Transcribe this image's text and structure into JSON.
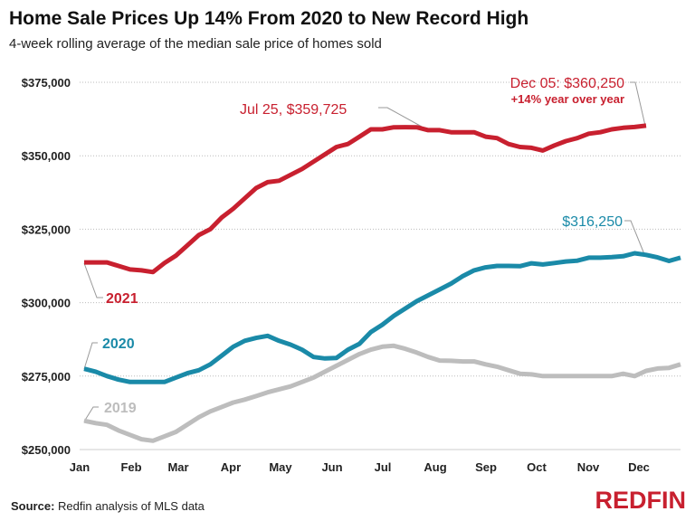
{
  "title": "Home Sale Prices Up 14% From 2020 to New Record High",
  "subtitle": "4-week rolling average of the median sale price of homes sold",
  "source_label": "Source:",
  "source_text": "Redfin analysis of MLS data",
  "logo": "REDFIN",
  "chart_data": {
    "type": "line",
    "title": "Home Sale Prices Up 14% From 2020 to New Record High",
    "xlabel": "",
    "ylabel": "",
    "x_unit": "week of year",
    "ylim": [
      250000,
      375000
    ],
    "yticks": [
      375000,
      350000,
      325000,
      300000,
      275000,
      250000
    ],
    "ytick_labels": [
      "$375,000",
      "$350,000",
      "$325,000",
      "$300,000",
      "$275,000",
      "$250,000"
    ],
    "xtick_labels": [
      "Jan",
      "Feb",
      "Mar",
      "Apr",
      "May",
      "Jun",
      "Jul",
      "Aug",
      "Sep",
      "Oct",
      "Nov",
      "Dec"
    ],
    "grid": "horizontal dotted",
    "series": [
      {
        "name": "2019",
        "color": "#bdbdbd",
        "values": [
          259800,
          259000,
          258400,
          256500,
          255000,
          253500,
          253000,
          254500,
          256000,
          258500,
          261000,
          263000,
          264500,
          266000,
          267000,
          268200,
          269500,
          270500,
          271500,
          273000,
          274500,
          276500,
          278500,
          280500,
          282500,
          284000,
          285000,
          285300,
          284300,
          283000,
          281500,
          280300,
          280200,
          280000,
          280000,
          279000,
          278200,
          277000,
          275800,
          275600,
          275000,
          275000,
          275000,
          275000,
          275000,
          275000,
          275000,
          275800,
          275000,
          276800,
          277600,
          277800,
          279000
        ]
      },
      {
        "name": "2020",
        "color": "#1a8aa8",
        "values": [
          277500,
          276500,
          275000,
          273800,
          273000,
          273000,
          273000,
          273000,
          274500,
          276000,
          277000,
          279000,
          282000,
          285000,
          287000,
          288000,
          288700,
          287000,
          285700,
          284000,
          281500,
          281000,
          281200,
          284000,
          286000,
          290000,
          292500,
          295500,
          298000,
          300500,
          302500,
          304500,
          306500,
          309000,
          311000,
          312000,
          312500,
          312500,
          312400,
          313400,
          313000,
          313500,
          314000,
          314300,
          315300,
          315300,
          315500,
          315800,
          316800,
          316250,
          315400,
          314200,
          315300
        ]
      },
      {
        "name": "2021",
        "color": "#c8202f",
        "values": [
          313700,
          313700,
          313700,
          312500,
          311300,
          311000,
          310400,
          313500,
          316000,
          319500,
          323000,
          325000,
          329000,
          332000,
          335500,
          339000,
          341000,
          341500,
          343500,
          345500,
          348000,
          350500,
          353000,
          354000,
          356500,
          359000,
          359000,
          359700,
          359725,
          359700,
          358700,
          358700,
          358000,
          358000,
          358000,
          356500,
          356000,
          354000,
          353000,
          352700,
          351800,
          353500,
          355000,
          356000,
          357500,
          358000,
          359000,
          359500,
          359800,
          360250
        ]
      }
    ],
    "annotations": {
      "jul": "Jul 25, $359,725",
      "dec": "Dec 05: $360,250",
      "yoy": "+14% year over year",
      "teal": "$316,250"
    }
  }
}
